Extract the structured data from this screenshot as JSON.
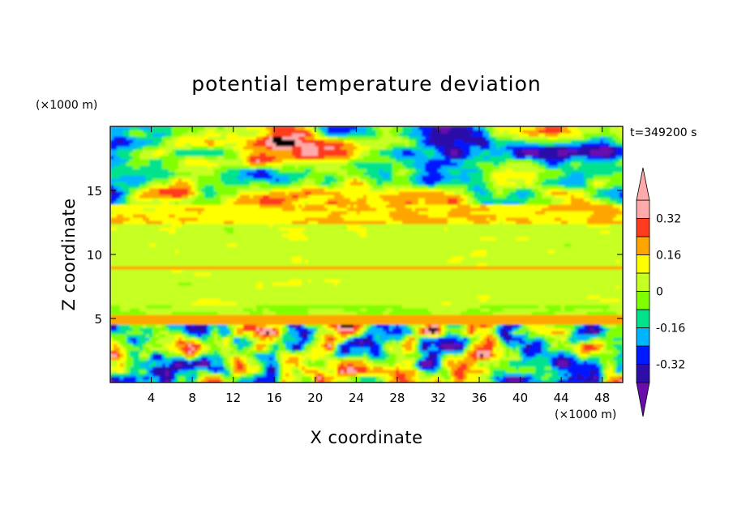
{
  "chart_data": {
    "type": "heatmap",
    "title": "potential temperature deviation",
    "xlabel": "X coordinate",
    "ylabel": "Z coordinate",
    "x_unit": "(×1000 m)",
    "y_unit": "(×1000 m)",
    "time_label": "t=349200 s",
    "xlim": [
      0,
      50
    ],
    "ylim": [
      0,
      20
    ],
    "x_ticks": [
      4,
      8,
      12,
      16,
      20,
      24,
      28,
      32,
      36,
      40,
      44,
      48
    ],
    "y_ticks": [
      5,
      10,
      15
    ],
    "colorbar": {
      "levels": [
        -0.4,
        -0.32,
        -0.24,
        -0.16,
        -0.08,
        0,
        0.08,
        0.16,
        0.24,
        0.32,
        0.4
      ],
      "labels": [
        "0.32",
        "0.16",
        "0",
        "-0.16",
        "-0.32"
      ],
      "label_values": [
        0.32,
        0.16,
        0,
        -0.16,
        -0.32
      ],
      "colors_low_to_high": [
        "#6a0dad",
        "#2b0fa8",
        "#0019ff",
        "#00b4ff",
        "#00e38c",
        "#80ff00",
        "#c6ff24",
        "#ffff00",
        "#ffa500",
        "#ff3b1f",
        "#ffaaaa"
      ],
      "extends": "both"
    },
    "layers": [
      {
        "z_range": [
          14,
          20
        ],
        "description": "upper",
        "dominant_values": [
          -0.45,
          0.45
        ]
      },
      {
        "z_range": [
          12.5,
          14
        ],
        "dominant_values": [
          0.12,
          0.2
        ]
      },
      {
        "z_range": [
          5,
          12.5
        ],
        "dominant_values": [
          0.02,
          0.1
        ]
      },
      {
        "z_range": [
          0,
          5
        ],
        "dominant_values": [
          -0.45,
          0.45
        ]
      }
    ]
  }
}
